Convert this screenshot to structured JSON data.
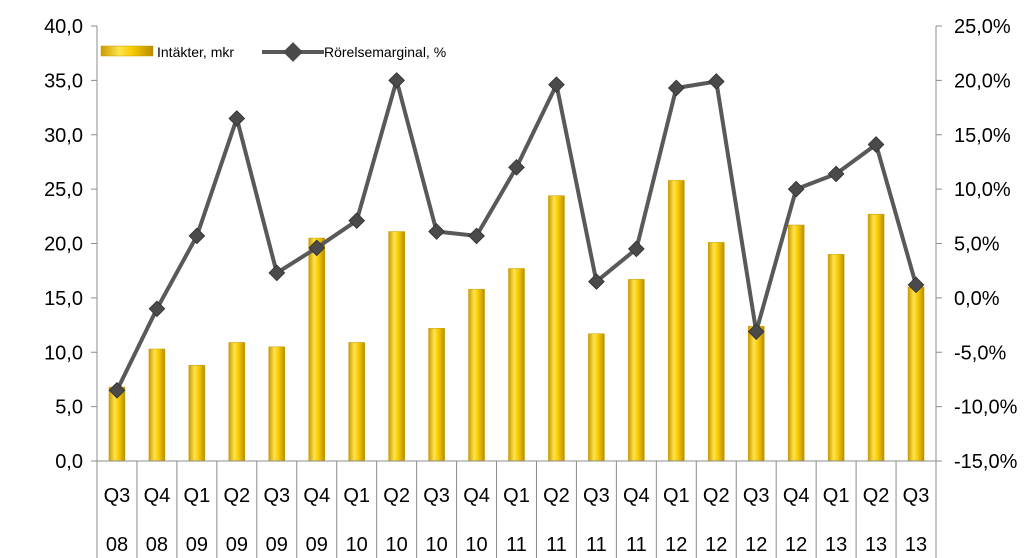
{
  "chart_data": {
    "type": "bar",
    "categories": [
      "Q3 08",
      "Q4 08",
      "Q1 09",
      "Q2 09",
      "Q3 09",
      "Q4 09",
      "Q1 10",
      "Q2 10",
      "Q3 10",
      "Q4 10",
      "Q1 11",
      "Q2 11",
      "Q3 11",
      "Q4 11",
      "Q1 12",
      "Q2 12",
      "Q3 12",
      "Q4 12",
      "Q1 13",
      "Q2 13",
      "Q3 13"
    ],
    "quarter_labels": [
      "Q3",
      "Q4",
      "Q1",
      "Q2",
      "Q3",
      "Q4",
      "Q1",
      "Q2",
      "Q3",
      "Q4",
      "Q1",
      "Q2",
      "Q3",
      "Q4",
      "Q1",
      "Q2",
      "Q3",
      "Q4",
      "Q1",
      "Q2",
      "Q3"
    ],
    "year_labels": [
      "08",
      "08",
      "09",
      "09",
      "09",
      "09",
      "10",
      "10",
      "10",
      "10",
      "11",
      "11",
      "11",
      "11",
      "12",
      "12",
      "12",
      "12",
      "13",
      "13",
      "13"
    ],
    "series": [
      {
        "name": "Intäkter, mkr",
        "type": "bar",
        "axis": "left",
        "color": "#f2c400",
        "values": [
          6.8,
          10.3,
          8.8,
          10.9,
          10.5,
          20.5,
          10.9,
          21.1,
          12.2,
          15.8,
          17.7,
          24.4,
          11.7,
          16.7,
          25.8,
          20.1,
          12.4,
          21.7,
          19.0,
          22.7,
          16.0
        ]
      },
      {
        "name": "Rörelsemarginal, %",
        "type": "line",
        "axis": "right",
        "color": "#595959",
        "values": [
          -8.5,
          -1.0,
          5.7,
          16.5,
          2.3,
          4.6,
          7.1,
          20.0,
          6.1,
          5.7,
          12.0,
          19.6,
          1.5,
          4.5,
          19.3,
          19.9,
          -3.1,
          10.0,
          11.4,
          14.1,
          1.2
        ]
      }
    ],
    "y_left": {
      "ylim": [
        0,
        40
      ],
      "ticks": [
        "0,0",
        "5,0",
        "10,0",
        "15,0",
        "20,0",
        "25,0",
        "30,0",
        "35,0",
        "40,0"
      ]
    },
    "y_right": {
      "ylim": [
        -15,
        25
      ],
      "ticks": [
        "-15,0%",
        "-10,0%",
        "-5,0%",
        "0,0%",
        "5,0%",
        "10,0%",
        "15,0%",
        "20,0%",
        "25,0%"
      ]
    },
    "legend_position": "top-left",
    "grid": false
  }
}
